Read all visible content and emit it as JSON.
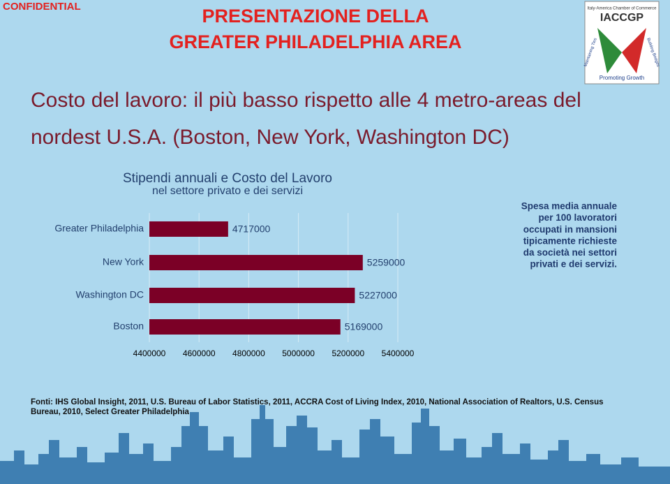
{
  "confidential": "CONFIDENTIAL",
  "title_lines": [
    "PRESENTAZIONE DELLA",
    "GREATER PHILADELPHIA AREA"
  ],
  "heading_lines": [
    "Costo del lavoro: il più basso rispetto alle 4 metro-areas del",
    "nordest U.S.A. (Boston, New York, Washington DC)"
  ],
  "logo": {
    "name": "IACCGP",
    "top": "Italy-America Chamber of Commerce",
    "left": "Maintaining Ties",
    "right": "Building Bridges",
    "bottom": "Promoting Growth"
  },
  "chart_data": {
    "type": "bar",
    "orientation": "horizontal",
    "title": "Stipendi annuali e Costo del Lavoro",
    "subtitle": "nel settore privato e dei servizi",
    "categories": [
      "Greater Philadelphia",
      "New York",
      "Washington DC",
      "Boston"
    ],
    "values": [
      4717000,
      5259000,
      5227000,
      5169000
    ],
    "color": "#7b0026",
    "xlim": [
      4400000,
      5400000
    ],
    "xticks": [
      4400000,
      4600000,
      4800000,
      5000000,
      5200000,
      5400000
    ],
    "grid": true
  },
  "annotation_lines": [
    "Spesa media annuale",
    "per 100 lavoratori",
    "occupati in mansioni ",
    "tipicamente richieste",
    "da società nei settori",
    "privati e dei servizi."
  ],
  "sources_lines": [
    "Fonti: IHS Global Insight, 2011, U.S. Bureau of Labor Statistics, 2011, ACCRA Cost of Living Index, 2010, National Association of Realtors, U.S. Census",
    "Bureau, 2010, Select Greater Philadelphia"
  ]
}
